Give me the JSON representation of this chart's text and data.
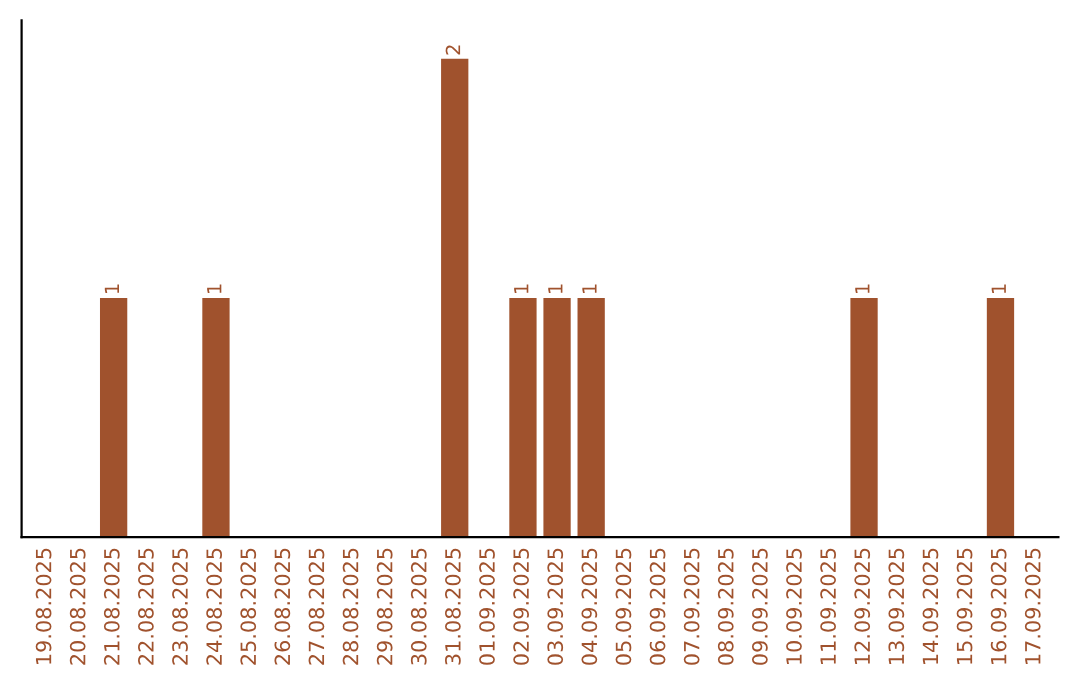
{
  "chart_data": {
    "type": "bar",
    "categories": [
      "19.08.2025",
      "20.08.2025",
      "21.08.2025",
      "22.08.2025",
      "23.08.2025",
      "24.08.2025",
      "25.08.2025",
      "26.08.2025",
      "27.08.2025",
      "28.08.2025",
      "29.08.2025",
      "30.08.2025",
      "31.08.2025",
      "01.09.2025",
      "02.09.2025",
      "03.09.2025",
      "04.09.2025",
      "05.09.2025",
      "06.09.2025",
      "07.09.2025",
      "08.09.2025",
      "09.09.2025",
      "10.09.2025",
      "11.09.2025",
      "12.09.2025",
      "13.09.2025",
      "14.09.2025",
      "15.09.2025",
      "16.09.2025",
      "17.09.2025"
    ],
    "values": [
      0,
      0,
      1,
      0,
      0,
      1,
      0,
      0,
      0,
      0,
      0,
      0,
      2,
      0,
      1,
      1,
      1,
      0,
      0,
      0,
      0,
      0,
      0,
      0,
      1,
      0,
      0,
      0,
      1,
      0
    ],
    "value_labels": [
      null,
      null,
      "1",
      null,
      null,
      "1",
      null,
      null,
      null,
      null,
      null,
      null,
      "2",
      null,
      "1",
      "1",
      "1",
      null,
      null,
      null,
      null,
      null,
      null,
      null,
      "1",
      null,
      null,
      null,
      "1",
      null
    ],
    "color": "#a0522d",
    "grid": false,
    "legend": false
  }
}
